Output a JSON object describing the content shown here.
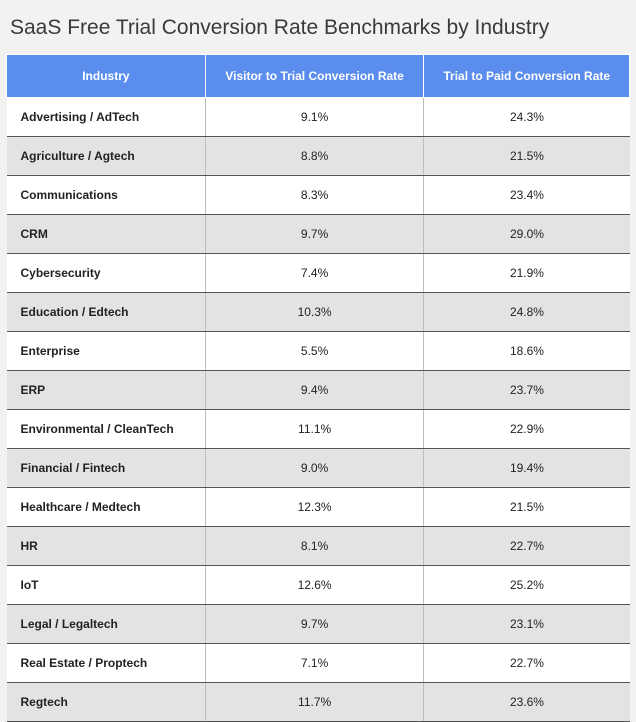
{
  "title": "SaaS Free Trial Conversion Rate Benchmarks by Industry",
  "table": {
    "type": "table",
    "header_bg": "#5a8dee",
    "header_fg": "#ffffff",
    "row_bg_odd": "#ffffff",
    "row_bg_even": "#e3e3e3",
    "border_color": "#555555",
    "title_fontsize": 21,
    "header_fontsize": 12,
    "cell_fontsize": 12,
    "columns": [
      {
        "label": "Industry",
        "align": "left"
      },
      {
        "label": "Visitor to Trial Conversion Rate",
        "align": "center"
      },
      {
        "label": "Trial to Paid Conversion Rate",
        "align": "center"
      }
    ],
    "rows": [
      {
        "industry": "Advertising / AdTech",
        "visitor_to_trial": "9.1%",
        "trial_to_paid": "24.3%"
      },
      {
        "industry": "Agriculture / Agtech",
        "visitor_to_trial": "8.8%",
        "trial_to_paid": "21.5%"
      },
      {
        "industry": "Communications",
        "visitor_to_trial": "8.3%",
        "trial_to_paid": "23.4%"
      },
      {
        "industry": "CRM",
        "visitor_to_trial": "9.7%",
        "trial_to_paid": "29.0%"
      },
      {
        "industry": "Cybersecurity",
        "visitor_to_trial": "7.4%",
        "trial_to_paid": "21.9%"
      },
      {
        "industry": "Education / Edtech",
        "visitor_to_trial": "10.3%",
        "trial_to_paid": "24.8%"
      },
      {
        "industry": "Enterprise",
        "visitor_to_trial": "5.5%",
        "trial_to_paid": "18.6%"
      },
      {
        "industry": "ERP",
        "visitor_to_trial": "9.4%",
        "trial_to_paid": "23.7%"
      },
      {
        "industry": "Environmental / CleanTech",
        "visitor_to_trial": "11.1%",
        "trial_to_paid": "22.9%"
      },
      {
        "industry": "Financial / Fintech",
        "visitor_to_trial": "9.0%",
        "trial_to_paid": "19.4%"
      },
      {
        "industry": "Healthcare / Medtech",
        "visitor_to_trial": "12.3%",
        "trial_to_paid": "21.5%"
      },
      {
        "industry": "HR",
        "visitor_to_trial": "8.1%",
        "trial_to_paid": "22.7%"
      },
      {
        "industry": "IoT",
        "visitor_to_trial": "12.6%",
        "trial_to_paid": "25.2%"
      },
      {
        "industry": "Legal / Legaltech",
        "visitor_to_trial": "9.7%",
        "trial_to_paid": "23.1%"
      },
      {
        "industry": "Real Estate / Proptech",
        "visitor_to_trial": "7.1%",
        "trial_to_paid": "22.7%"
      },
      {
        "industry": "Regtech",
        "visitor_to_trial": "11.7%",
        "trial_to_paid": "23.6%"
      }
    ]
  }
}
